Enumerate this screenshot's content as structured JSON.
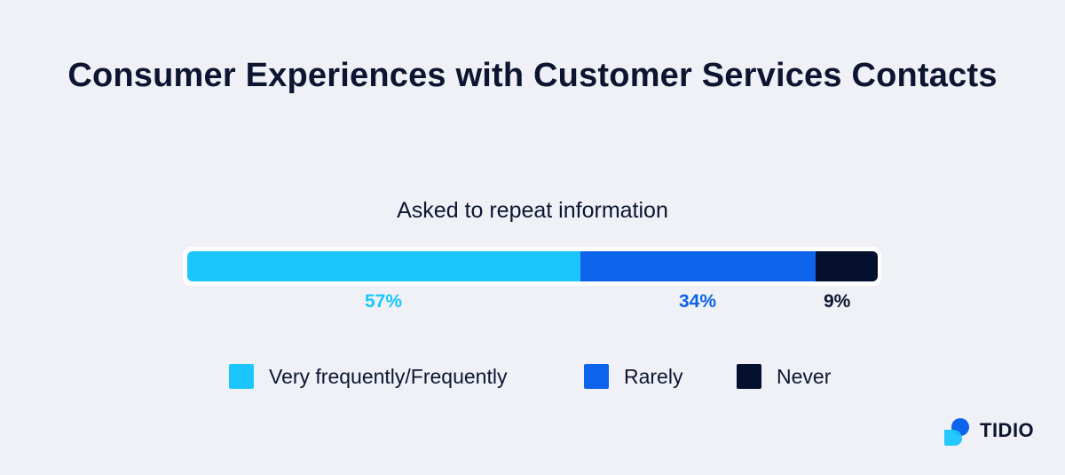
{
  "chart_data": {
    "type": "bar",
    "orientation": "horizontal-stacked",
    "title": "Consumer Experiences with Customer Services Contacts",
    "subtitle": "Asked to repeat information",
    "series": [
      {
        "name": "Very frequently/Frequently",
        "value": 57,
        "label": "57%",
        "color": "#1ac6fd"
      },
      {
        "name": "Rarely",
        "value": 34,
        "label": "34%",
        "color": "#0d63ea"
      },
      {
        "name": "Never",
        "value": 9,
        "label": "9%",
        "color": "#05102f"
      }
    ],
    "legend_position": "bottom"
  },
  "brand": {
    "name": "TIDIO",
    "logo_icon": "chat-bubble-icon"
  }
}
